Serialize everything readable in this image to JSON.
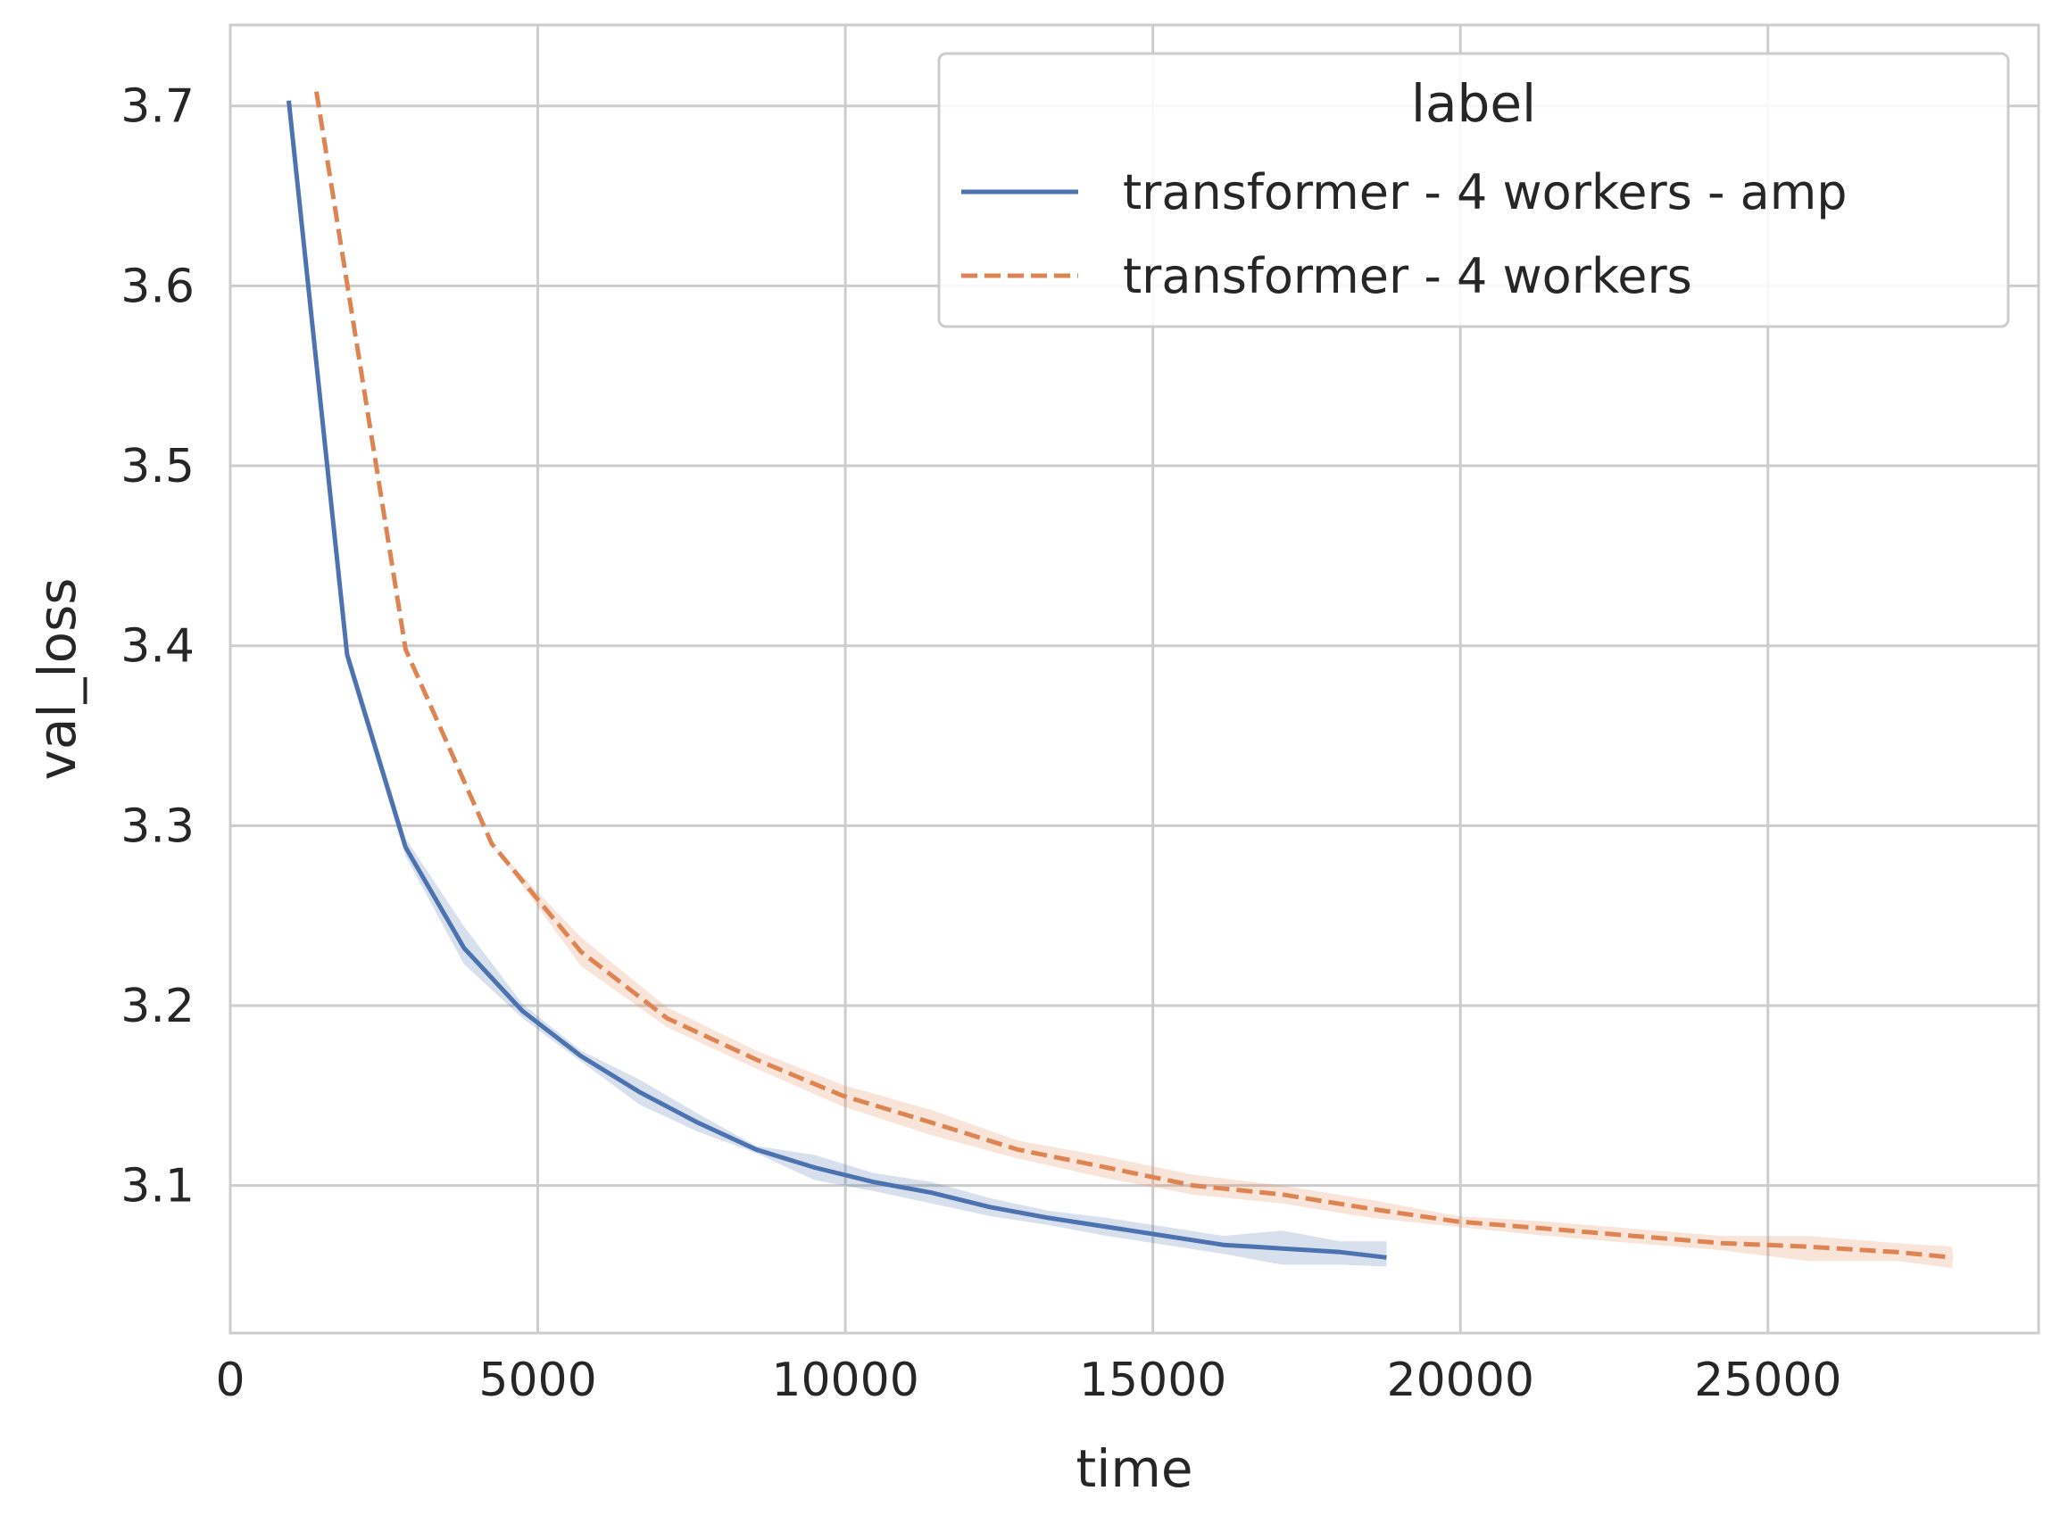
{
  "chart_data": {
    "type": "line",
    "xlabel": "time",
    "ylabel": "val_loss",
    "xlim": [
      0,
      29400
    ],
    "ylim": [
      3.018,
      3.745
    ],
    "x_ticks": [
      0,
      5000,
      10000,
      15000,
      20000,
      25000
    ],
    "y_ticks": [
      3.1,
      3.2,
      3.3,
      3.4,
      3.5,
      3.6,
      3.7
    ],
    "grid": true,
    "legend": {
      "title": "label",
      "position": "top-right"
    },
    "series": [
      {
        "name": "transformer - 4 workers - amp",
        "color": "#4c72b0",
        "dash": "solid",
        "x": [
          950,
          1900,
          2850,
          3800,
          4750,
          5700,
          6650,
          7600,
          8550,
          9500,
          10450,
          11400,
          12350,
          13300,
          14250,
          15200,
          16150,
          17100,
          18050,
          18800
        ],
        "y": [
          3.703,
          3.395,
          3.288,
          3.232,
          3.197,
          3.172,
          3.152,
          3.135,
          3.12,
          3.11,
          3.102,
          3.096,
          3.088,
          3.082,
          3.077,
          3.072,
          3.067,
          3.065,
          3.063,
          3.06
        ],
        "lower": [
          3.703,
          3.39,
          3.283,
          3.223,
          3.193,
          3.169,
          3.145,
          3.13,
          3.118,
          3.103,
          3.097,
          3.09,
          3.083,
          3.078,
          3.072,
          3.067,
          3.062,
          3.056,
          3.056,
          3.055
        ],
        "upper": [
          3.703,
          3.4,
          3.293,
          3.244,
          3.201,
          3.175,
          3.159,
          3.14,
          3.122,
          3.117,
          3.107,
          3.102,
          3.093,
          3.086,
          3.082,
          3.077,
          3.072,
          3.075,
          3.069,
          3.069
        ]
      },
      {
        "name": "transformer - 4 workers",
        "color": "#dd8452",
        "dash": "dashed",
        "x": [
          1400,
          2850,
          4250,
          5700,
          7100,
          8550,
          9950,
          11400,
          12800,
          14250,
          15650,
          17100,
          18550,
          19950,
          21400,
          22800,
          24250,
          25650,
          27100,
          28000
        ],
        "y": [
          3.708,
          3.398,
          3.29,
          3.23,
          3.193,
          3.17,
          3.15,
          3.135,
          3.12,
          3.11,
          3.1,
          3.095,
          3.087,
          3.08,
          3.076,
          3.072,
          3.068,
          3.066,
          3.063,
          3.06
        ],
        "lower": [
          3.708,
          3.398,
          3.29,
          3.222,
          3.188,
          3.165,
          3.144,
          3.128,
          3.115,
          3.104,
          3.095,
          3.09,
          3.082,
          3.077,
          3.072,
          3.068,
          3.064,
          3.058,
          3.058,
          3.054
        ],
        "upper": [
          3.708,
          3.398,
          3.29,
          3.238,
          3.199,
          3.175,
          3.156,
          3.142,
          3.125,
          3.116,
          3.106,
          3.1,
          3.092,
          3.083,
          3.08,
          3.076,
          3.072,
          3.072,
          3.068,
          3.066
        ]
      }
    ]
  }
}
